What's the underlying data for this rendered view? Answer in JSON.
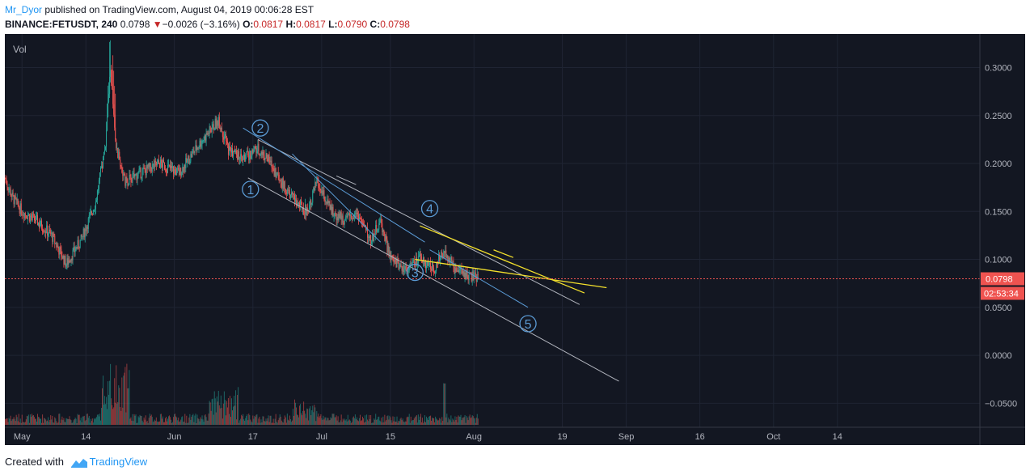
{
  "header": {
    "author": "Mr_Dyor",
    "published": "published on TradingView.com, August 04, 2019 00:06:28 EST",
    "symbol": "BINANCE:FETUSDT, 240",
    "last": "0.0798",
    "arrow": "▼",
    "change": "−0.0026 (−3.16%)",
    "o_label": "O:",
    "o_val": "0.0817",
    "h_label": "H:",
    "h_val": "0.0817",
    "l_label": "L:",
    "l_val": "0.0790",
    "c_label": "C:",
    "c_val": "0.0798"
  },
  "footer": {
    "prefix": "Created with",
    "brand": "TradingView"
  },
  "chart_data": {
    "type": "candlestick",
    "symbol": "BINANCE:FETUSDT",
    "interval": "240",
    "indicator": "Vol",
    "y_ticks": [
      "0.3000",
      "0.2500",
      "0.2000",
      "0.1500",
      "0.1000",
      "0.0500",
      "0.0000",
      "−0.0500"
    ],
    "ylim": [
      -0.075,
      0.335
    ],
    "x_ticks": [
      {
        "label": "May",
        "day": 0
      },
      {
        "label": "14",
        "day": 13
      },
      {
        "label": "Jun",
        "day": 31
      },
      {
        "label": "17",
        "day": 47
      },
      {
        "label": "Jul",
        "day": 61
      },
      {
        "label": "15",
        "day": 75
      },
      {
        "label": "Aug",
        "day": 92
      },
      {
        "label": "19",
        "day": 110
      },
      {
        "label": "Sep",
        "day": 123
      },
      {
        "label": "16",
        "day": 138
      },
      {
        "label": "Oct",
        "day": 153
      },
      {
        "label": "14",
        "day": 166
      }
    ],
    "x_range_days": [
      -3.5,
      195
    ],
    "price_path": [
      [
        -3.5,
        0.185
      ],
      [
        -2,
        0.165
      ],
      [
        0,
        0.15
      ],
      [
        3,
        0.14
      ],
      [
        6,
        0.125
      ],
      [
        9,
        0.095
      ],
      [
        12,
        0.12
      ],
      [
        15,
        0.16
      ],
      [
        17,
        0.22
      ],
      [
        18,
        0.3
      ],
      [
        19,
        0.22
      ],
      [
        21,
        0.18
      ],
      [
        24,
        0.19
      ],
      [
        28,
        0.2
      ],
      [
        32,
        0.19
      ],
      [
        36,
        0.22
      ],
      [
        40,
        0.245
      ],
      [
        42,
        0.215
      ],
      [
        45,
        0.205
      ],
      [
        48,
        0.215
      ],
      [
        50,
        0.205
      ],
      [
        54,
        0.17
      ],
      [
        58,
        0.15
      ],
      [
        60,
        0.18
      ],
      [
        63,
        0.15
      ],
      [
        66,
        0.14
      ],
      [
        68,
        0.15
      ],
      [
        71,
        0.12
      ],
      [
        73,
        0.14
      ],
      [
        75,
        0.1
      ],
      [
        78,
        0.09
      ],
      [
        81,
        0.1
      ],
      [
        84,
        0.09
      ],
      [
        86,
        0.11
      ],
      [
        88,
        0.09
      ],
      [
        90,
        0.085
      ],
      [
        93,
        0.0798
      ]
    ],
    "last_price": 0.0798,
    "last_price_label": "0.0798",
    "countdown": "02:53:34",
    "wave_labels": [
      {
        "label": "1",
        "day": 46.5,
        "price": 0.173
      },
      {
        "label": "2",
        "day": 48.5,
        "price": 0.237
      },
      {
        "label": "3",
        "day": 80,
        "price": 0.0865
      },
      {
        "label": "4",
        "day": 83,
        "price": 0.153
      },
      {
        "label": "5",
        "day": 103,
        "price": 0.033
      }
    ],
    "trendlines_white": [
      [
        [
          48,
          0.225
        ],
        [
          113.5,
          0.053
        ]
      ],
      [
        [
          46,
          0.185
        ],
        [
          121.5,
          -0.027
        ]
      ],
      [
        [
          64,
          0.187
        ],
        [
          68,
          0.178
        ]
      ]
    ],
    "trendlines_blue": [
      [
        [
          45,
          0.237
        ],
        [
          82,
          0.118
        ]
      ],
      [
        [
          55,
          0.21
        ],
        [
          73,
          0.118
        ]
      ],
      [
        [
          83,
          0.11
        ],
        [
          103,
          0.05
        ]
      ]
    ],
    "trendlines_yellow": [
      [
        [
          80,
          0.1
        ],
        [
          119,
          0.0705
        ]
      ],
      [
        [
          81,
          0.135
        ],
        [
          114.5,
          0.065
        ]
      ],
      [
        [
          96,
          0.11
        ],
        [
          100,
          0.102
        ]
      ]
    ]
  },
  "colors": {
    "bg": "#131722",
    "grid": "#1f2433",
    "up": "#26a69a",
    "down": "#ef5350",
    "last_price": "#ef5350",
    "wave": "#5b9bd5",
    "yellow": "#f4e12c",
    "white": "#b2b5be"
  }
}
